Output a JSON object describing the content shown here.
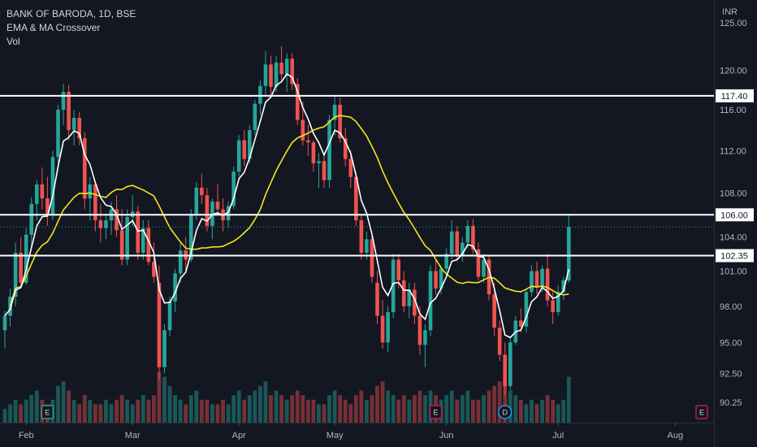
{
  "header": {
    "title": "BANK OF BARODA, 1D, BSE",
    "indicator": "EMA & MA Crossover",
    "volume_label": "Vol",
    "currency": "INR"
  },
  "colors": {
    "background": "#131722",
    "up": "#26a69a",
    "down": "#ef5350",
    "ema": "#ffffff",
    "ma": "#f5e61c",
    "level": "#ffffff",
    "earnings": "#c2185b",
    "dividend": "#2196f3"
  },
  "chart_data": {
    "type": "candlestick",
    "y_axis": {
      "ticks": [
        90.25,
        92.5,
        95.0,
        98.0,
        101.0,
        104.0,
        108.0,
        112.0,
        116.0,
        120.0,
        125.0
      ],
      "scale": "log",
      "range": [
        89.3,
        125.0
      ]
    },
    "x_axis": {
      "labels": [
        {
          "label": "Feb",
          "index": 4
        },
        {
          "label": "Mar",
          "index": 24
        },
        {
          "label": "Apr",
          "index": 44
        },
        {
          "label": "May",
          "index": 62
        },
        {
          "label": "Jun",
          "index": 83
        },
        {
          "label": "Jul",
          "index": 104
        },
        {
          "label": "Aug",
          "index": 126
        }
      ]
    },
    "levels": [
      {
        "value": 117.4,
        "label": "117.40"
      },
      {
        "value": 106.0,
        "label": "106.00"
      },
      {
        "value": 102.35,
        "label": "102.35"
      }
    ],
    "last_price": 104.9,
    "events": [
      {
        "type": "earnings",
        "glyph": "E",
        "index": 8
      },
      {
        "type": "earnings",
        "glyph": "E",
        "index": 81
      },
      {
        "type": "dividend",
        "glyph": "D",
        "index": 94
      },
      {
        "type": "earnings",
        "glyph": "E",
        "index": 132
      }
    ],
    "candles": [
      [
        96.0,
        97.6,
        94.5,
        97.2
      ],
      [
        97.2,
        99.5,
        96.3,
        98.8
      ],
      [
        98.8,
        103.5,
        98.0,
        102.6
      ],
      [
        102.6,
        104.0,
        99.5,
        100.0
      ],
      [
        100.0,
        104.8,
        99.8,
        104.2
      ],
      [
        104.2,
        107.6,
        103.0,
        107.0
      ],
      [
        107.0,
        109.2,
        105.5,
        108.8
      ],
      [
        108.8,
        110.4,
        106.5,
        107.5
      ],
      [
        107.5,
        109.5,
        105.0,
        106.0
      ],
      [
        106.0,
        112.0,
        105.5,
        111.4
      ],
      [
        111.4,
        116.5,
        110.8,
        116.0
      ],
      [
        116.0,
        118.6,
        114.5,
        117.8
      ],
      [
        117.8,
        118.5,
        113.0,
        114.0
      ],
      [
        114.0,
        116.0,
        112.5,
        115.2
      ],
      [
        115.2,
        115.8,
        112.5,
        113.2
      ],
      [
        113.2,
        113.8,
        106.5,
        107.5
      ],
      [
        107.5,
        109.5,
        105.5,
        108.8
      ],
      [
        108.8,
        109.2,
        104.5,
        105.5
      ],
      [
        105.5,
        107.0,
        103.5,
        104.8
      ],
      [
        104.8,
        106.0,
        103.8,
        105.5
      ],
      [
        105.5,
        107.2,
        104.2,
        106.5
      ],
      [
        106.5,
        107.8,
        104.0,
        104.6
      ],
      [
        104.6,
        106.5,
        101.5,
        102.0
      ],
      [
        102.0,
        106.5,
        101.5,
        105.8
      ],
      [
        105.8,
        107.8,
        105.0,
        106.3
      ],
      [
        106.3,
        106.8,
        102.0,
        102.6
      ],
      [
        102.6,
        105.5,
        102.0,
        104.8
      ],
      [
        104.8,
        105.5,
        101.5,
        101.8
      ],
      [
        101.8,
        103.5,
        100.0,
        100.5
      ],
      [
        100.0,
        101.5,
        92.0,
        93.0
      ],
      [
        93.0,
        96.5,
        92.5,
        96.0
      ],
      [
        96.0,
        98.8,
        95.5,
        98.4
      ],
      [
        98.4,
        101.2,
        97.5,
        100.8
      ],
      [
        100.8,
        103.5,
        100.0,
        102.8
      ],
      [
        102.8,
        104.0,
        101.0,
        102.0
      ],
      [
        102.0,
        106.5,
        101.8,
        106.0
      ],
      [
        106.0,
        109.0,
        105.5,
        108.5
      ],
      [
        108.5,
        109.8,
        107.0,
        107.8
      ],
      [
        107.8,
        108.5,
        104.5,
        105.0
      ],
      [
        105.0,
        107.5,
        103.8,
        107.2
      ],
      [
        107.2,
        108.8,
        106.0,
        106.5
      ],
      [
        106.5,
        107.5,
        104.5,
        105.5
      ],
      [
        105.5,
        107.2,
        104.8,
        106.8
      ],
      [
        106.8,
        110.5,
        106.5,
        110.0
      ],
      [
        110.0,
        113.5,
        109.5,
        113.0
      ],
      [
        113.0,
        114.0,
        110.5,
        111.2
      ],
      [
        111.2,
        114.5,
        110.8,
        114.0
      ],
      [
        114.0,
        117.0,
        113.5,
        116.6
      ],
      [
        116.6,
        119.0,
        115.5,
        118.4
      ],
      [
        118.4,
        122.0,
        117.5,
        120.6
      ],
      [
        120.6,
        121.5,
        117.5,
        118.3
      ],
      [
        118.3,
        121.5,
        117.8,
        120.8
      ],
      [
        120.8,
        122.5,
        119.0,
        119.6
      ],
      [
        119.6,
        121.8,
        117.8,
        121.2
      ],
      [
        121.2,
        121.8,
        118.0,
        118.6
      ],
      [
        118.6,
        119.2,
        114.5,
        115.0
      ],
      [
        115.0,
        116.8,
        112.5,
        113.0
      ],
      [
        113.0,
        114.5,
        111.5,
        112.8
      ],
      [
        112.8,
        113.0,
        110.0,
        110.8
      ],
      [
        110.8,
        111.8,
        108.5,
        111.0
      ],
      [
        111.0,
        111.5,
        108.5,
        109.2
      ],
      [
        109.2,
        115.5,
        108.5,
        115.0
      ],
      [
        115.0,
        117.5,
        113.5,
        116.5
      ],
      [
        116.5,
        117.2,
        112.8,
        113.2
      ],
      [
        113.2,
        114.2,
        110.5,
        111.2
      ],
      [
        111.2,
        112.0,
        108.5,
        109.5
      ],
      [
        109.5,
        110.0,
        105.0,
        105.5
      ],
      [
        105.5,
        106.0,
        102.0,
        102.6
      ],
      [
        102.6,
        104.5,
        102.0,
        103.8
      ],
      [
        103.8,
        104.2,
        100.0,
        100.5
      ],
      [
        100.0,
        101.0,
        96.5,
        97.2
      ],
      [
        97.2,
        98.5,
        94.5,
        95.0
      ],
      [
        95.0,
        98.0,
        94.2,
        97.5
      ],
      [
        97.5,
        102.5,
        97.0,
        102.0
      ],
      [
        102.0,
        102.5,
        99.5,
        100.2
      ],
      [
        100.2,
        101.0,
        97.5,
        98.0
      ],
      [
        98.0,
        100.0,
        97.0,
        99.4
      ],
      [
        99.4,
        100.0,
        96.5,
        97.2
      ],
      [
        97.2,
        98.0,
        94.0,
        94.8
      ],
      [
        94.8,
        96.5,
        93.0,
        96.0
      ],
      [
        96.0,
        101.5,
        95.5,
        101.0
      ],
      [
        101.0,
        102.0,
        99.0,
        99.5
      ],
      [
        99.5,
        101.5,
        99.0,
        101.2
      ],
      [
        101.2,
        103.0,
        100.5,
        102.5
      ],
      [
        102.5,
        105.5,
        102.0,
        104.5
      ],
      [
        104.5,
        105.0,
        102.0,
        102.3
      ],
      [
        102.3,
        104.0,
        101.8,
        103.5
      ],
      [
        103.5,
        105.5,
        103.0,
        105.0
      ],
      [
        105.0,
        105.6,
        102.5,
        102.9
      ],
      [
        102.9,
        103.5,
        100.2,
        100.5
      ],
      [
        100.5,
        102.5,
        100.0,
        102.0
      ],
      [
        102.0,
        102.4,
        98.5,
        99.0
      ],
      [
        99.0,
        100.0,
        95.5,
        96.2
      ],
      [
        96.2,
        96.8,
        93.5,
        94.0
      ],
      [
        94.0,
        95.0,
        90.8,
        91.5
      ],
      [
        91.5,
        95.5,
        91.2,
        95.0
      ],
      [
        95.0,
        97.2,
        94.8,
        96.8
      ],
      [
        96.8,
        97.8,
        95.8,
        96.3
      ],
      [
        96.3,
        99.5,
        95.8,
        99.2
      ],
      [
        99.2,
        101.5,
        98.8,
        101.0
      ],
      [
        101.0,
        101.8,
        99.0,
        99.6
      ],
      [
        99.6,
        101.5,
        99.2,
        101.2
      ],
      [
        101.2,
        102.5,
        98.0,
        98.5
      ],
      [
        98.5,
        99.2,
        96.5,
        97.5
      ],
      [
        97.5,
        99.8,
        97.2,
        99.2
      ],
      [
        99.2,
        100.5,
        98.5,
        100.2
      ],
      [
        100.2,
        106.0,
        100.0,
        104.9
      ]
    ],
    "volumes": [
      3,
      4,
      5,
      4,
      5,
      6,
      7,
      5,
      4,
      5,
      8,
      9,
      7,
      5,
      4,
      6,
      5,
      4,
      4,
      5,
      4,
      5,
      6,
      5,
      4,
      5,
      6,
      5,
      6,
      11,
      10,
      8,
      6,
      5,
      4,
      6,
      7,
      5,
      5,
      4,
      4,
      5,
      4,
      6,
      7,
      5,
      6,
      7,
      8,
      9,
      6,
      7,
      6,
      5,
      6,
      7,
      6,
      5,
      5,
      4,
      4,
      6,
      7,
      6,
      5,
      4,
      6,
      7,
      5,
      6,
      8,
      9,
      7,
      6,
      5,
      6,
      5,
      6,
      7,
      6,
      7,
      6,
      5,
      6,
      7,
      5,
      6,
      7,
      5,
      5,
      6,
      7,
      8,
      9,
      10,
      7,
      6,
      5,
      4,
      5,
      4,
      5,
      6,
      5,
      4,
      5,
      10
    ]
  }
}
